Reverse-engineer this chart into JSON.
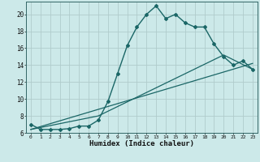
{
  "xlabel": "Humidex (Indice chaleur)",
  "bg_color": "#cce9e9",
  "grid_color": "#b0cccc",
  "line_color": "#1a6666",
  "line1_x": [
    0,
    1,
    2,
    3,
    4,
    5,
    6,
    7,
    8,
    9,
    10,
    11,
    12,
    13,
    14,
    15,
    16,
    17,
    18,
    19,
    20,
    21,
    22,
    23
  ],
  "line1_y": [
    7.0,
    6.4,
    6.4,
    6.4,
    6.5,
    6.8,
    6.8,
    7.5,
    9.7,
    13.0,
    16.3,
    18.5,
    20.0,
    21.0,
    19.5,
    20.0,
    19.0,
    18.5,
    18.5,
    16.5,
    15.0,
    14.0,
    14.5,
    13.5
  ],
  "line2_x": [
    0,
    23
  ],
  "line2_y": [
    6.4,
    14.2
  ],
  "line3_x": [
    0,
    7,
    20,
    23
  ],
  "line3_y": [
    6.4,
    8.0,
    15.2,
    13.5
  ],
  "ylim": [
    6,
    21.5
  ],
  "xlim": [
    -0.5,
    23.5
  ],
  "yticks": [
    6,
    8,
    10,
    12,
    14,
    16,
    18,
    20
  ],
  "xticks": [
    0,
    1,
    2,
    3,
    4,
    5,
    6,
    7,
    8,
    9,
    10,
    11,
    12,
    13,
    14,
    15,
    16,
    17,
    18,
    19,
    20,
    21,
    22,
    23
  ]
}
